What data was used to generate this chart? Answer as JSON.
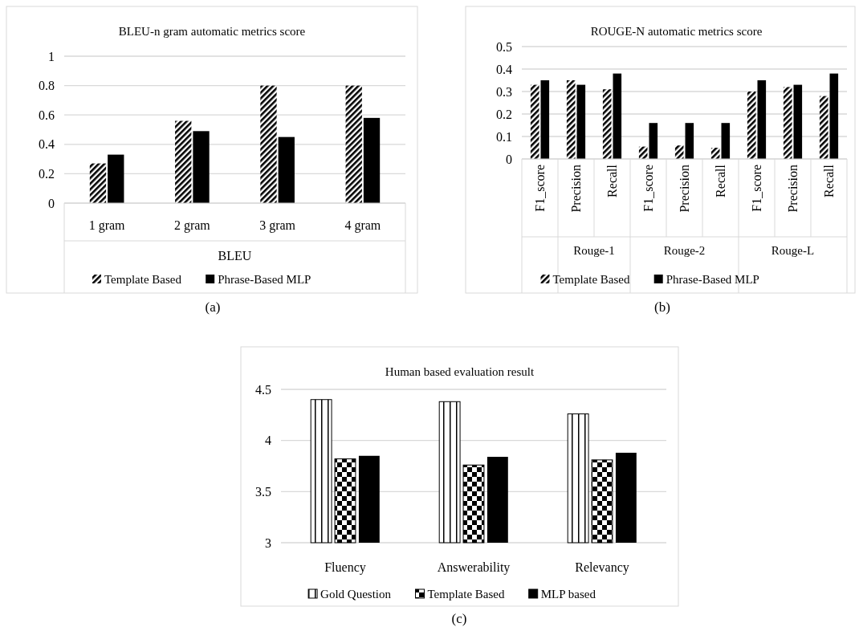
{
  "chart_data": [
    {
      "type": "bar",
      "title": "BLEU-n gram automatic metrics score",
      "xlabel": "BLEU",
      "categories": [
        "1 gram",
        "2 gram",
        "3 gram",
        "4 gram"
      ],
      "series": [
        {
          "name": "Template Based",
          "color": "#000000",
          "values": [
            0.27,
            0.56,
            0.8,
            0.8
          ]
        },
        {
          "name": "Phrase-Based MLP",
          "color": "#000000",
          "values": [
            0.33,
            0.49,
            0.45,
            0.58
          ]
        }
      ],
      "ylim": [
        0,
        1
      ],
      "yticks": [
        0,
        0.2,
        0.4,
        0.6,
        0.8,
        1
      ],
      "grid": "y",
      "legend": "bottom",
      "annotations": [
        "(a)"
      ]
    },
    {
      "type": "bar",
      "title": "ROUGE-N automatic metrics score",
      "categories": [
        "F1_score",
        "Precision",
        "Recall",
        "F1_score",
        "Precision",
        "Recall",
        "F1_score",
        "Precision",
        "Recall"
      ],
      "series": [
        {
          "name": "Template Based",
          "color": "#000000",
          "values": [
            0.33,
            0.35,
            0.31,
            0.055,
            0.06,
            0.05,
            0.3,
            0.32,
            0.28
          ]
        },
        {
          "name": "Phrase-Based MLP",
          "color": "#000000",
          "values": [
            0.35,
            0.33,
            0.38,
            0.16,
            0.16,
            0.16,
            0.35,
            0.33,
            0.38
          ]
        }
      ],
      "ylim": [
        0,
        0.5
      ],
      "yticks": [
        0,
        0.1,
        0.2,
        0.3,
        0.4,
        0.5
      ],
      "grid": "y",
      "legend": "bottom",
      "annotations": [
        "Rouge-1",
        "Rouge-2",
        "Rouge-L",
        "(b)"
      ]
    },
    {
      "type": "bar",
      "title": "Human based evaluation result",
      "categories": [
        "Fluency",
        "Answerability",
        "Relevancy"
      ],
      "series": [
        {
          "name": "Gold Question",
          "color": "#000000",
          "values": [
            4.4,
            4.38,
            4.26
          ]
        },
        {
          "name": "Template Based",
          "color": "#000000",
          "values": [
            3.82,
            3.76,
            3.81
          ]
        },
        {
          "name": "MLP based",
          "color": "#000000",
          "values": [
            3.85,
            3.84,
            3.88
          ]
        }
      ],
      "ylim": [
        3,
        4.5
      ],
      "yticks": [
        3,
        3.5,
        4,
        4.5
      ],
      "grid": "y",
      "legend": "bottom",
      "annotations": [
        "(c)"
      ]
    }
  ]
}
